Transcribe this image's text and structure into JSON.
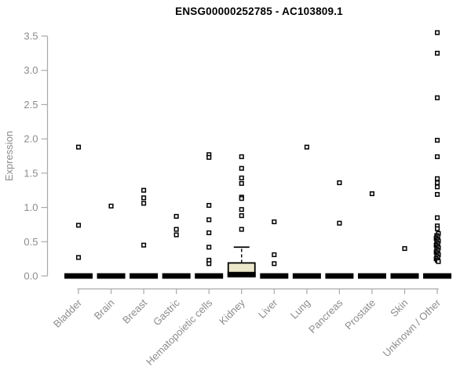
{
  "chart_data": {
    "type": "boxplot",
    "title": "ENSG00000252785 - AC103809.1",
    "ylabel": "Expression",
    "ylim": [
      0,
      3.5
    ],
    "ytick_labels": [
      "0.0",
      "0.5",
      "1.0",
      "1.5",
      "2.0",
      "2.5",
      "3.0",
      "3.5"
    ],
    "grid": false,
    "legend": "none",
    "categories": [
      "Bladder",
      "Brain",
      "Breast",
      "Gastric",
      "Hematopoietic cells",
      "Kidney",
      "Liver",
      "Lung",
      "Pancreas",
      "Prostate",
      "Skin",
      "Unknown / Other"
    ],
    "series": [
      {
        "category": "Bladder",
        "median": 0.0,
        "points": [
          1.88,
          0.74,
          0.27
        ]
      },
      {
        "category": "Brain",
        "median": 0.0,
        "points": [
          1.02
        ]
      },
      {
        "category": "Breast",
        "median": 0.0,
        "points": [
          1.25,
          1.14,
          1.06,
          0.45
        ]
      },
      {
        "category": "Gastric",
        "median": 0.0,
        "points": [
          0.87,
          0.68,
          0.6
        ]
      },
      {
        "category": "Hematopoietic cells",
        "median": 0.0,
        "points": [
          1.77,
          1.73,
          1.03,
          0.82,
          0.63,
          0.42,
          0.23,
          0.18
        ]
      },
      {
        "category": "Kidney",
        "median": 0.02,
        "box": {
          "q1": 0.0,
          "q3": 0.19,
          "whisker_high": 0.42,
          "whisker_low": 0.0
        },
        "points": [
          1.74,
          1.57,
          1.43,
          1.35,
          1.15,
          1.13,
          0.97,
          0.88,
          0.68
        ]
      },
      {
        "category": "Liver",
        "median": 0.0,
        "points": [
          0.79,
          0.31,
          0.18
        ]
      },
      {
        "category": "Lung",
        "median": 0.0,
        "points": [
          1.88
        ]
      },
      {
        "category": "Pancreas",
        "median": 0.0,
        "points": [
          1.36,
          0.77
        ]
      },
      {
        "category": "Prostate",
        "median": 0.0,
        "points": [
          1.2
        ]
      },
      {
        "category": "Skin",
        "median": 0.0,
        "points": [
          0.4
        ]
      },
      {
        "category": "Unknown / Other",
        "median": 0.0,
        "points": [
          3.55,
          3.25,
          2.6,
          1.98,
          1.74,
          1.42,
          1.36,
          1.3,
          1.19,
          0.85,
          0.73,
          0.69,
          0.62,
          0.59,
          0.57,
          0.55,
          0.53,
          0.51,
          0.49,
          0.47,
          0.45,
          0.43,
          0.41,
          0.39,
          0.37,
          0.35,
          0.33,
          0.31,
          0.29,
          0.27,
          0.25,
          0.23,
          0.21
        ]
      }
    ],
    "colors": {
      "title": "#000000",
      "axis_line": "#aaaaaa",
      "tick_label": "#8c8c8c",
      "axis_label": "#8c8c8c",
      "point_stroke": "#000000",
      "point_fill": "#ffffff",
      "median_bar": "#000000",
      "box_fill": "#ece7ca",
      "box_stroke": "#000000"
    }
  }
}
